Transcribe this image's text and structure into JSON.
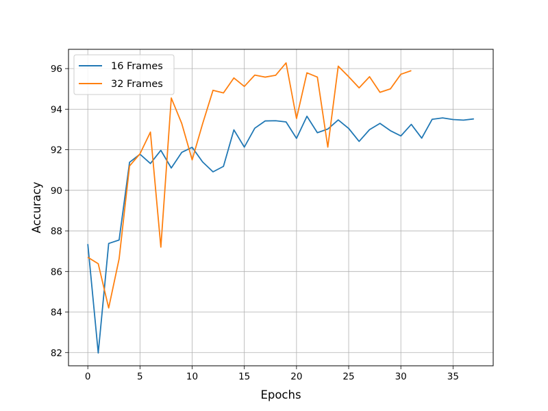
{
  "chart_data": {
    "type": "line",
    "title": "",
    "xlabel": "Epochs",
    "ylabel": "Accuracy",
    "xlim": [
      -1.85,
      38.85
    ],
    "ylim": [
      81.35,
      96.95
    ],
    "xticks": [
      0,
      5,
      10,
      15,
      20,
      25,
      30,
      35
    ],
    "yticks": [
      82,
      84,
      86,
      88,
      90,
      92,
      94,
      96
    ],
    "grid": true,
    "legend_position": "top-left",
    "series": [
      {
        "name": "16 Frames",
        "color": "#1f77b4",
        "x": [
          0,
          1,
          2,
          3,
          4,
          5,
          6,
          7,
          8,
          9,
          10,
          11,
          12,
          13,
          14,
          15,
          16,
          17,
          18,
          19,
          20,
          21,
          22,
          23,
          24,
          25,
          26,
          27,
          28,
          29,
          30,
          31,
          32,
          33,
          34,
          35,
          36,
          37
        ],
        "values": [
          87.35,
          81.98,
          87.38,
          87.55,
          91.38,
          91.78,
          91.32,
          91.97,
          91.1,
          91.87,
          92.12,
          91.4,
          90.91,
          91.18,
          92.98,
          92.13,
          93.06,
          93.42,
          93.43,
          93.37,
          92.56,
          93.65,
          92.84,
          93.02,
          93.47,
          93.05,
          92.41,
          92.99,
          93.3,
          92.94,
          92.68,
          93.25,
          92.57,
          93.5,
          93.57,
          93.49,
          93.46,
          93.52
        ]
      },
      {
        "name": "32 Frames",
        "color": "#ff7f0e",
        "x": [
          0,
          1,
          2,
          3,
          4,
          5,
          6,
          7,
          8,
          9,
          10,
          11,
          12,
          13,
          14,
          15,
          16,
          17,
          18,
          19,
          20,
          21,
          22,
          23,
          24,
          25,
          26,
          27,
          28,
          29,
          30,
          31
        ],
        "values": [
          86.7,
          86.38,
          84.2,
          86.62,
          91.2,
          91.8,
          92.87,
          87.2,
          94.55,
          93.3,
          91.5,
          93.28,
          94.93,
          94.8,
          95.54,
          95.12,
          95.68,
          95.58,
          95.67,
          96.28,
          93.54,
          95.79,
          95.58,
          92.13,
          96.12,
          95.6,
          95.05,
          95.6,
          94.83,
          95.0,
          95.72,
          95.9
        ]
      }
    ]
  }
}
